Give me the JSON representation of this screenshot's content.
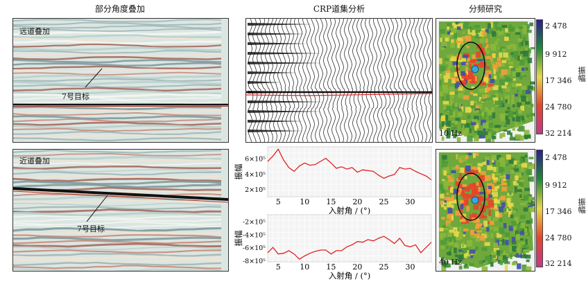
{
  "titles": {
    "partial_stack": "部分角度叠加",
    "crp": "CRP道集分析",
    "spectral": "分频研究"
  },
  "far_stack": {
    "label": "远道叠加",
    "target": "7号目标"
  },
  "near_stack": {
    "label": "近道叠加",
    "target": "7号目标"
  },
  "spectral_top": {
    "freq": "10 Hz"
  },
  "spectral_bottom": {
    "freq": "40 Hz"
  },
  "colorbar": {
    "ticks": [
      "2 478",
      "9 912",
      "17 346",
      "24 780",
      "32 214"
    ],
    "label": "振幅",
    "colors": [
      "#2a1f8f",
      "#1f8a3a",
      "#e8d84a",
      "#e8442a",
      "#c23a8a"
    ]
  },
  "chart_data": [
    {
      "type": "line",
      "xlabel": "入射角 / (°)",
      "ylabel": "振幅",
      "xlim": [
        3,
        34
      ],
      "ylim": [
        100000,
        750000
      ],
      "xticks": [
        5,
        10,
        15,
        20,
        25,
        30
      ],
      "yticks": [
        {
          "v": 200000,
          "t": "2×10⁵"
        },
        {
          "v": 400000,
          "t": "4×10⁵"
        },
        {
          "v": 600000,
          "t": "6×10⁵"
        }
      ],
      "x": [
        3,
        4,
        5,
        6,
        7,
        8,
        9,
        10,
        11,
        12,
        13,
        14,
        15,
        16,
        17,
        18,
        19,
        20,
        21,
        22,
        23,
        24,
        25,
        26,
        27,
        28,
        29,
        30,
        31,
        32,
        33,
        34
      ],
      "values": [
        560000,
        630000,
        720000,
        580000,
        480000,
        430000,
        500000,
        540000,
        510000,
        520000,
        560000,
        600000,
        540000,
        470000,
        490000,
        460000,
        480000,
        420000,
        450000,
        440000,
        430000,
        380000,
        340000,
        370000,
        390000,
        480000,
        460000,
        470000,
        430000,
        400000,
        370000,
        320000
      ],
      "color": "#e02020"
    },
    {
      "type": "line",
      "xlabel": "入射角 / (°)",
      "ylabel": "振幅",
      "xlim": [
        3,
        34
      ],
      "ylim": [
        -820000,
        -100000
      ],
      "xticks": [
        5,
        10,
        15,
        20,
        25,
        30
      ],
      "yticks": [
        {
          "v": -200000,
          "t": "-2×10⁵"
        },
        {
          "v": -400000,
          "t": "-4×10⁵"
        },
        {
          "v": -600000,
          "t": "-6×10⁵"
        },
        {
          "v": -800000,
          "t": "-8×10⁵"
        }
      ],
      "x": [
        3,
        4,
        5,
        6,
        7,
        8,
        9,
        10,
        11,
        12,
        13,
        14,
        15,
        16,
        17,
        18,
        19,
        20,
        21,
        22,
        23,
        24,
        25,
        26,
        27,
        28,
        29,
        30,
        31,
        32,
        33,
        34
      ],
      "values": [
        -680000,
        -600000,
        -700000,
        -690000,
        -650000,
        -700000,
        -780000,
        -730000,
        -690000,
        -660000,
        -640000,
        -640000,
        -700000,
        -650000,
        -650000,
        -590000,
        -560000,
        -510000,
        -520000,
        -480000,
        -500000,
        -460000,
        -430000,
        -480000,
        -540000,
        -460000,
        -570000,
        -590000,
        -560000,
        -680000,
        -600000,
        -520000
      ],
      "color": "#e02020"
    }
  ]
}
